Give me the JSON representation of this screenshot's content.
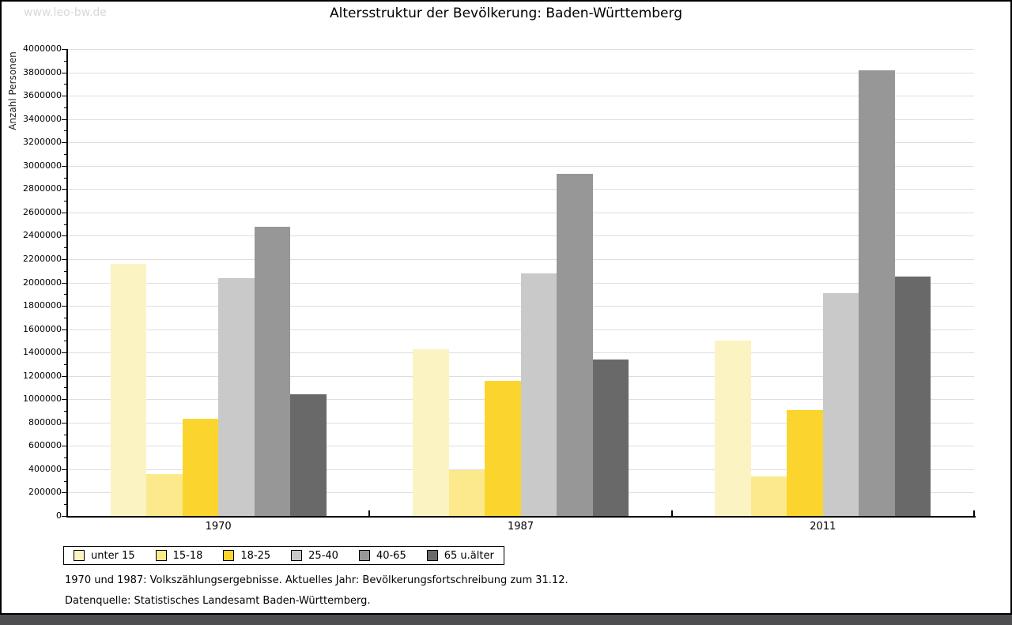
{
  "page": {
    "watermark": "www.leo-bw.de",
    "footnote_line1": "1970 und 1987: Volkszählungsergebnisse. Aktuelles Jahr: Bevölkerungsfortschreibung zum 31.12.",
    "footnote_line2": "Datenquelle: Statistisches Landesamt Baden-Württemberg."
  },
  "chart_data": {
    "type": "bar",
    "title": "Altersstruktur der Bevölkerung: Baden-Württemberg",
    "xlabel": "",
    "ylabel": "Anzahl Personen",
    "ylim": [
      0,
      4000000
    ],
    "ytick_major": 200000,
    "ytick_minor": 100000,
    "grid": true,
    "legend_position": "bottom-left",
    "categories": [
      "1970",
      "1987",
      "2011"
    ],
    "series": [
      {
        "name": "unter 15",
        "color": "#fcf3c3",
        "values": [
          2160000,
          1430000,
          1500000
        ]
      },
      {
        "name": "15-18",
        "color": "#fbe98b",
        "values": [
          360000,
          390000,
          340000
        ]
      },
      {
        "name": "18-25",
        "color": "#fcd42e",
        "values": [
          830000,
          1160000,
          910000
        ]
      },
      {
        "name": "25-40",
        "color": "#c9c9c9",
        "values": [
          2040000,
          2080000,
          1910000
        ]
      },
      {
        "name": "40-65",
        "color": "#979797",
        "values": [
          2480000,
          2930000,
          3820000
        ]
      },
      {
        "name": "65 u.älter",
        "color": "#696969",
        "values": [
          1040000,
          1340000,
          2050000
        ]
      }
    ]
  }
}
